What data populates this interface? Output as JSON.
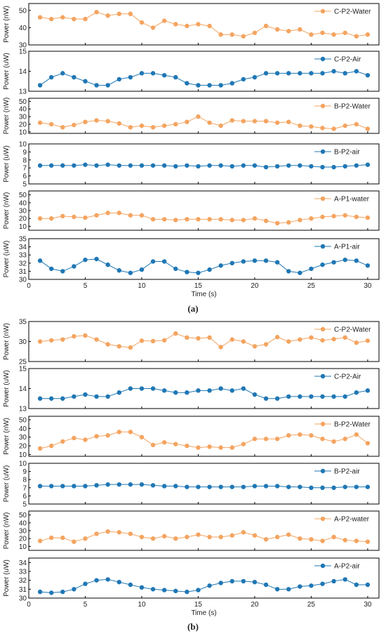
{
  "figure": {
    "caption_a": "(a)",
    "caption_b": "(b)"
  },
  "colors": {
    "orange": "#f4a460",
    "blue": "#1f77b4"
  },
  "chart_data": [
    {
      "type": "line",
      "group": "a",
      "name": "C-P2-Water",
      "color": "#f4a460",
      "ylabel": "Power (nW)",
      "ylim": [
        30,
        54
      ],
      "yticks": [
        30,
        40,
        50
      ],
      "xlim": [
        0,
        31
      ],
      "x": [
        1,
        2,
        3,
        4,
        5,
        6,
        7,
        8,
        9,
        10,
        11,
        12,
        13,
        14,
        15,
        16,
        17,
        18,
        19,
        20,
        21,
        22,
        23,
        24,
        25,
        26,
        27,
        28,
        29,
        30
      ],
      "values": [
        46,
        45,
        46,
        45,
        45,
        49,
        47,
        48,
        48,
        43,
        40,
        44,
        42,
        41,
        42,
        41,
        36,
        36,
        35,
        37,
        41,
        39,
        38,
        39,
        36,
        37,
        36,
        37,
        35,
        36
      ],
      "legend_position": "top-right"
    },
    {
      "type": "line",
      "group": "a",
      "name": "C-P2-Air",
      "color": "#1f77b4",
      "ylabel": "Power (uW)",
      "ylim": [
        13,
        15
      ],
      "yticks": [
        13,
        14,
        15
      ],
      "xlim": [
        0,
        31
      ],
      "x": [
        1,
        2,
        3,
        4,
        5,
        6,
        7,
        8,
        9,
        10,
        11,
        12,
        13,
        14,
        15,
        16,
        17,
        18,
        19,
        20,
        21,
        22,
        23,
        24,
        25,
        26,
        27,
        28,
        29,
        30
      ],
      "values": [
        13.3,
        13.7,
        13.9,
        13.7,
        13.5,
        13.3,
        13.3,
        13.6,
        13.7,
        13.9,
        13.9,
        13.8,
        13.7,
        13.4,
        13.3,
        13.3,
        13.3,
        13.4,
        13.6,
        13.7,
        13.9,
        13.9,
        13.9,
        13.9,
        13.9,
        13.9,
        14.0,
        13.9,
        14.0,
        13.8
      ],
      "legend_position": "top-right"
    },
    {
      "type": "line",
      "group": "a",
      "name": "B-P2-Water",
      "color": "#f4a460",
      "ylabel": "Power (nW)",
      "ylim": [
        8,
        54
      ],
      "yticks": [
        10,
        20,
        30,
        40,
        50
      ],
      "xlim": [
        0,
        31
      ],
      "x": [
        1,
        2,
        3,
        4,
        5,
        6,
        7,
        8,
        9,
        10,
        11,
        12,
        13,
        14,
        15,
        16,
        17,
        18,
        19,
        20,
        21,
        22,
        23,
        24,
        25,
        26,
        27,
        28,
        29,
        30
      ],
      "values": [
        22,
        20,
        16,
        19,
        23,
        25,
        24,
        21,
        16,
        18,
        16,
        18,
        20,
        23,
        30,
        22,
        18,
        25,
        24,
        24,
        24,
        22,
        23,
        18,
        17,
        15,
        14,
        18,
        20,
        14
      ],
      "legend_position": "top-right"
    },
    {
      "type": "line",
      "group": "a",
      "name": "B-P2-air",
      "color": "#1f77b4",
      "ylabel": "Power (uW)",
      "ylim": [
        5,
        10
      ],
      "yticks": [
        5,
        6,
        7,
        8,
        9,
        10
      ],
      "xlim": [
        0,
        31
      ],
      "x": [
        1,
        2,
        3,
        4,
        5,
        6,
        7,
        8,
        9,
        10,
        11,
        12,
        13,
        14,
        15,
        16,
        17,
        18,
        19,
        20,
        21,
        22,
        23,
        24,
        25,
        26,
        27,
        28,
        29,
        30
      ],
      "values": [
        7.3,
        7.3,
        7.3,
        7.3,
        7.4,
        7.3,
        7.4,
        7.3,
        7.3,
        7.3,
        7.3,
        7.3,
        7.2,
        7.3,
        7.2,
        7.3,
        7.3,
        7.2,
        7.3,
        7.3,
        7.1,
        7.2,
        7.3,
        7.3,
        7.2,
        7.1,
        7.1,
        7.2,
        7.3,
        7.4
      ],
      "legend_position": "top-right"
    },
    {
      "type": "line",
      "group": "a",
      "name": "A-P1-water",
      "color": "#f4a460",
      "ylabel": "Power (nW)",
      "ylim": [
        5,
        55
      ],
      "yticks": [
        10,
        20,
        30,
        40,
        50
      ],
      "xlim": [
        0,
        31
      ],
      "x": [
        1,
        2,
        3,
        4,
        5,
        6,
        7,
        8,
        9,
        10,
        11,
        12,
        13,
        14,
        15,
        16,
        17,
        18,
        19,
        20,
        21,
        22,
        23,
        24,
        25,
        26,
        27,
        28,
        29,
        30
      ],
      "values": [
        20,
        20,
        23,
        22,
        21,
        24,
        27,
        27,
        24,
        24,
        19,
        19,
        18,
        19,
        19,
        19,
        19,
        18,
        18,
        20,
        17,
        14,
        15,
        18,
        20,
        22,
        23,
        24,
        22,
        21
      ],
      "legend_position": "top-right"
    },
    {
      "type": "line",
      "group": "a",
      "name": "A-P1-air",
      "color": "#1f77b4",
      "ylabel": "Power (uW)",
      "ylim": [
        30,
        35
      ],
      "yticks": [
        30,
        31,
        32,
        33,
        34,
        35
      ],
      "xlim": [
        0,
        31
      ],
      "xticks": [
        0,
        5,
        10,
        15,
        20,
        25,
        30
      ],
      "xlabel": "Time (s)",
      "x": [
        1,
        2,
        3,
        4,
        5,
        6,
        7,
        8,
        9,
        10,
        11,
        12,
        13,
        14,
        15,
        16,
        17,
        18,
        19,
        20,
        21,
        22,
        23,
        24,
        25,
        26,
        27,
        28,
        29,
        30
      ],
      "values": [
        32.3,
        31.3,
        31.0,
        31.6,
        32.4,
        32.5,
        31.8,
        31.1,
        30.8,
        31.2,
        32.2,
        32.2,
        31.3,
        30.9,
        30.8,
        31.2,
        31.7,
        32.0,
        32.2,
        32.3,
        32.3,
        32.1,
        31.0,
        30.8,
        31.3,
        31.8,
        32.1,
        32.4,
        32.3,
        31.7
      ],
      "legend_position": "top-right"
    },
    {
      "type": "line",
      "group": "b",
      "name": "C-P2-Water",
      "color": "#f4a460",
      "ylabel": "Power (nW)",
      "ylim": [
        25,
        35
      ],
      "yticks": [
        25,
        30,
        35
      ],
      "xlim": [
        0,
        31
      ],
      "x": [
        1,
        2,
        3,
        4,
        5,
        6,
        7,
        8,
        9,
        10,
        11,
        12,
        13,
        14,
        15,
        16,
        17,
        18,
        19,
        20,
        21,
        22,
        23,
        24,
        25,
        26,
        27,
        28,
        29,
        30
      ],
      "values": [
        30,
        30.3,
        30.5,
        31.3,
        31.5,
        30.5,
        29.3,
        28.8,
        28.5,
        30.2,
        30.1,
        30.3,
        32,
        31,
        30.8,
        31,
        28.6,
        30.5,
        30,
        28.8,
        29.3,
        31.1,
        30,
        30.5,
        31,
        30.3,
        30.6,
        31,
        29.7,
        30.2
      ],
      "legend_position": "top-right"
    },
    {
      "type": "line",
      "group": "b",
      "name": "C-P2-Air",
      "color": "#1f77b4",
      "ylabel": "Power (uW)",
      "ylim": [
        13,
        15
      ],
      "yticks": [
        13,
        14,
        15
      ],
      "xlim": [
        0,
        31
      ],
      "x": [
        1,
        2,
        3,
        4,
        5,
        6,
        7,
        8,
        9,
        10,
        11,
        12,
        13,
        14,
        15,
        16,
        17,
        18,
        19,
        20,
        21,
        22,
        23,
        24,
        25,
        26,
        27,
        28,
        29,
        30
      ],
      "values": [
        13.5,
        13.5,
        13.5,
        13.6,
        13.7,
        13.6,
        13.6,
        13.8,
        14.0,
        14.0,
        14.0,
        13.9,
        13.8,
        13.8,
        13.9,
        13.9,
        14.0,
        13.9,
        14.0,
        13.7,
        13.5,
        13.5,
        13.6,
        13.6,
        13.6,
        13.6,
        13.6,
        13.6,
        13.8,
        13.9
      ],
      "legend_position": "top-right"
    },
    {
      "type": "line",
      "group": "b",
      "name": "B-P2-Water",
      "color": "#f4a460",
      "ylabel": "Power (nW)",
      "ylim": [
        8,
        54
      ],
      "yticks": [
        10,
        20,
        30,
        40,
        50
      ],
      "xlim": [
        0,
        31
      ],
      "x": [
        1,
        2,
        3,
        4,
        5,
        6,
        7,
        8,
        9,
        10,
        11,
        12,
        13,
        14,
        15,
        16,
        17,
        18,
        19,
        20,
        21,
        22,
        23,
        24,
        25,
        26,
        27,
        28,
        29,
        30
      ],
      "values": [
        17,
        20,
        25,
        29,
        27,
        31,
        32,
        36,
        36,
        30,
        21,
        24,
        22,
        20,
        18,
        19,
        18,
        18,
        22,
        28,
        28,
        28,
        32,
        33,
        32,
        28,
        25,
        28,
        33,
        23
      ],
      "legend_position": "top-right"
    },
    {
      "type": "line",
      "group": "b",
      "name": "B-P2-air",
      "color": "#1f77b4",
      "ylabel": "Power (uW)",
      "ylim": [
        5,
        10
      ],
      "yticks": [
        5,
        6,
        7,
        8,
        9,
        10
      ],
      "xlim": [
        0,
        31
      ],
      "x": [
        1,
        2,
        3,
        4,
        5,
        6,
        7,
        8,
        9,
        10,
        11,
        12,
        13,
        14,
        15,
        16,
        17,
        18,
        19,
        20,
        21,
        22,
        23,
        24,
        25,
        26,
        27,
        28,
        29,
        30
      ],
      "values": [
        7.2,
        7.2,
        7.2,
        7.2,
        7.2,
        7.3,
        7.4,
        7.4,
        7.4,
        7.4,
        7.3,
        7.2,
        7.2,
        7.1,
        7.1,
        7.1,
        7.1,
        7.1,
        7.1,
        7.2,
        7.2,
        7.2,
        7.1,
        7.1,
        7.0,
        7.0,
        7.0,
        7.1,
        7.1,
        7.1
      ],
      "legend_position": "top-right"
    },
    {
      "type": "line",
      "group": "b",
      "name": "A-P2-water",
      "color": "#f4a460",
      "ylabel": "Power (nW)",
      "ylim": [
        5,
        55
      ],
      "yticks": [
        10,
        20,
        30,
        40,
        50
      ],
      "xlim": [
        0,
        31
      ],
      "x": [
        1,
        2,
        3,
        4,
        5,
        6,
        7,
        8,
        9,
        10,
        11,
        12,
        13,
        14,
        15,
        16,
        17,
        18,
        19,
        20,
        21,
        22,
        23,
        24,
        25,
        26,
        27,
        28,
        29,
        30
      ],
      "values": [
        17,
        21,
        21,
        16,
        20,
        26,
        29,
        28,
        26,
        22,
        20,
        23,
        20,
        22,
        25,
        22,
        22,
        24,
        28,
        24,
        19,
        22,
        25,
        20,
        19,
        17,
        22,
        18,
        17,
        16
      ],
      "legend_position": "top-right"
    },
    {
      "type": "line",
      "group": "b",
      "name": "A-P2-air",
      "color": "#1f77b4",
      "ylabel": "Power (uW)",
      "ylim": [
        30,
        34.5
      ],
      "yticks": [
        30,
        31,
        32,
        33,
        34
      ],
      "xlim": [
        0,
        31
      ],
      "xticks": [
        0,
        5,
        10,
        15,
        20,
        25,
        30
      ],
      "xlabel": "Time (s)",
      "x": [
        1,
        2,
        3,
        4,
        5,
        6,
        7,
        8,
        9,
        10,
        11,
        12,
        13,
        14,
        15,
        16,
        17,
        18,
        19,
        20,
        21,
        22,
        23,
        24,
        25,
        26,
        27,
        28,
        29,
        30
      ],
      "values": [
        30.7,
        30.6,
        30.7,
        31.0,
        31.6,
        32.0,
        32.1,
        31.8,
        31.5,
        31.2,
        31.0,
        30.9,
        30.8,
        30.7,
        30.9,
        31.4,
        31.7,
        31.9,
        31.9,
        31.8,
        31.5,
        31.0,
        31.0,
        31.3,
        31.4,
        31.6,
        31.9,
        32.1,
        31.5,
        31.5
      ],
      "legend_position": "top-right"
    }
  ]
}
